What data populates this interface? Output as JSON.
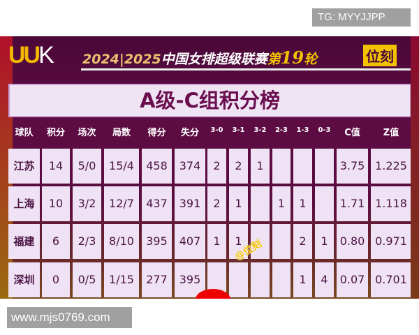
{
  "watermark_top": "TG: MYYJJPP",
  "watermark_bottom": "www.mjs0769.com",
  "poster": {
    "logo": "UUK",
    "headline_year": "2024|2025",
    "headline_league": "中国女排超级联赛",
    "headline_round_prefix": "第",
    "headline_round": "19",
    "headline_round_suffix": "轮",
    "brand": "位刻",
    "title": "A级-C组积分榜",
    "image_watermark": "@位刻"
  },
  "table": {
    "headers": [
      "球队",
      "积分",
      "场次",
      "局数",
      "得分",
      "失分",
      "3-0",
      "3-1",
      "3-2",
      "2-3",
      "1-3",
      "0-3",
      "C值",
      "Z值"
    ],
    "rows": [
      [
        "江苏",
        "14",
        "5/0",
        "15/4",
        "458",
        "374",
        "2",
        "2",
        "1",
        "",
        "",
        "",
        "3.75",
        "1.225"
      ],
      [
        "上海",
        "10",
        "3/2",
        "12/7",
        "437",
        "391",
        "2",
        "1",
        "",
        "1",
        "1",
        "",
        "1.71",
        "1.118"
      ],
      [
        "福建",
        "6",
        "2/3",
        "8/10",
        "395",
        "407",
        "1",
        "1",
        "",
        "",
        "2",
        "1",
        "0.80",
        "0.971"
      ],
      [
        "深圳",
        "0",
        "0/5",
        "1/15",
        "277",
        "395",
        "",
        "",
        "",
        "",
        "1",
        "4",
        "0.07",
        "0.701"
      ]
    ]
  },
  "colors": {
    "background": "#5e0c44",
    "cell": "#efe2f5",
    "accent": "#f2c200",
    "text": "#4a1240"
  }
}
